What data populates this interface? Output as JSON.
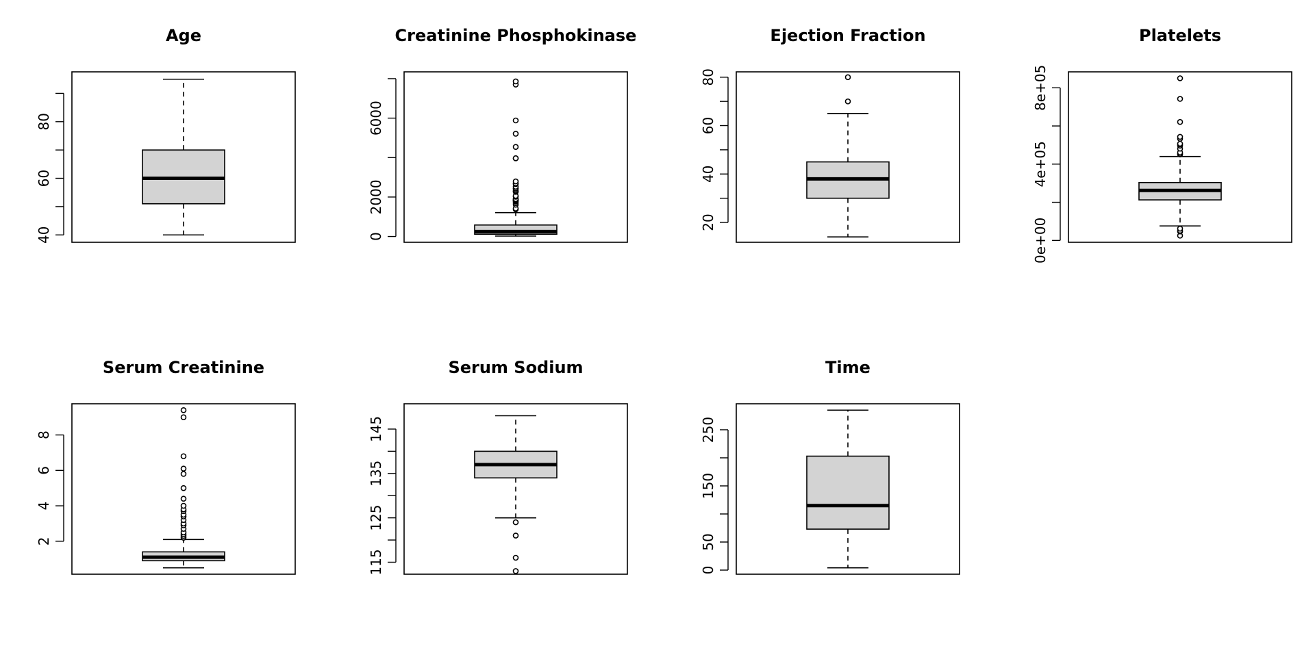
{
  "chart_data": [
    {
      "type": "box",
      "title": "Age",
      "ylim": [
        37.4,
        97.6
      ],
      "ticks": [
        40,
        50,
        60,
        70,
        80,
        90
      ],
      "tick_labels": [
        "40",
        "",
        "60",
        "",
        "80",
        ""
      ],
      "stats": {
        "whisker_low": 40,
        "q1": 51,
        "median": 60,
        "q3": 70,
        "whisker_high": 95
      },
      "outliers": []
    },
    {
      "type": "box",
      "title": "Creatinine Phosphokinase",
      "ylim": [
        -293,
        8345
      ],
      "ticks": [
        0,
        2000,
        4000,
        6000,
        8000
      ],
      "tick_labels": [
        "0",
        "2000",
        "",
        "6000",
        ""
      ],
      "stats": {
        "whisker_low": 23,
        "q1": 116,
        "median": 250,
        "q3": 582,
        "whisker_high": 1211
      },
      "outliers": [
        1380,
        1419,
        1610,
        1688,
        1767,
        1808,
        1820,
        1846,
        1876,
        1896,
        2017,
        2060,
        2261,
        2281,
        2334,
        2413,
        2442,
        2522,
        2656,
        2695,
        2794,
        3964,
        3966,
        4540,
        5209,
        5882,
        7702,
        7861
      ]
    },
    {
      "type": "box",
      "title": "Ejection Fraction",
      "ylim": [
        11.8,
        82.2
      ],
      "ticks": [
        20,
        30,
        40,
        50,
        60,
        70,
        80
      ],
      "tick_labels": [
        "20",
        "",
        "40",
        "",
        "60",
        "",
        "80"
      ],
      "stats": {
        "whisker_low": 14,
        "q1": 30,
        "median": 38,
        "q3": 45,
        "whisker_high": 65
      },
      "outliers": [
        70,
        80
      ]
    },
    {
      "type": "box",
      "title": "Platelets",
      "ylim": [
        -9600,
        883600
      ],
      "ticks": [
        0,
        200000,
        400000,
        600000,
        800000
      ],
      "tick_labels": [
        "0e+00",
        "",
        "4e+05",
        "",
        "8e+05"
      ],
      "stats": {
        "whisker_low": 76000,
        "q1": 212500,
        "median": 262000,
        "q3": 303500,
        "whisker_high": 440000
      },
      "outliers": [
        25100,
        47000,
        51000,
        62000,
        451000,
        454000,
        461000,
        481000,
        497000,
        504000,
        507000,
        533000,
        543000,
        621000,
        742000,
        850000
      ]
    },
    {
      "type": "box",
      "title": "Serum Creatinine",
      "ylim": [
        0.14,
        9.76
      ],
      "ticks": [
        2,
        4,
        6,
        8
      ],
      "tick_labels": [
        "2",
        "4",
        "6",
        "8"
      ],
      "stats": {
        "whisker_low": 0.5,
        "q1": 0.9,
        "median": 1.1,
        "q3": 1.4,
        "whisker_high": 2.1
      },
      "outliers": [
        2.2,
        2.3,
        2.4,
        2.5,
        2.7,
        2.9,
        3.0,
        3.2,
        3.4,
        3.5,
        3.7,
        3.8,
        4.0,
        4.4,
        5.0,
        5.8,
        6.1,
        6.8,
        9.0,
        9.4
      ]
    },
    {
      "type": "box",
      "title": "Serum Sodium",
      "ylim": [
        112.3,
        150.7
      ],
      "ticks": [
        115,
        120,
        125,
        130,
        135,
        140,
        145
      ],
      "tick_labels": [
        "115",
        "",
        "125",
        "",
        "135",
        "",
        "145"
      ],
      "stats": {
        "whisker_low": 125,
        "q1": 134,
        "median": 137,
        "q3": 140,
        "whisker_high": 148
      },
      "outliers": [
        113,
        116,
        121,
        124
      ]
    },
    {
      "type": "box",
      "title": "Time",
      "ylim": [
        -7.3,
        296.3
      ],
      "ticks": [
        0,
        50,
        100,
        150,
        200,
        250
      ],
      "tick_labels": [
        "0",
        "50",
        "",
        "150",
        "",
        "250"
      ],
      "stats": {
        "whisker_low": 4,
        "q1": 73,
        "median": 115,
        "q3": 203,
        "whisker_high": 285
      },
      "outliers": []
    }
  ]
}
